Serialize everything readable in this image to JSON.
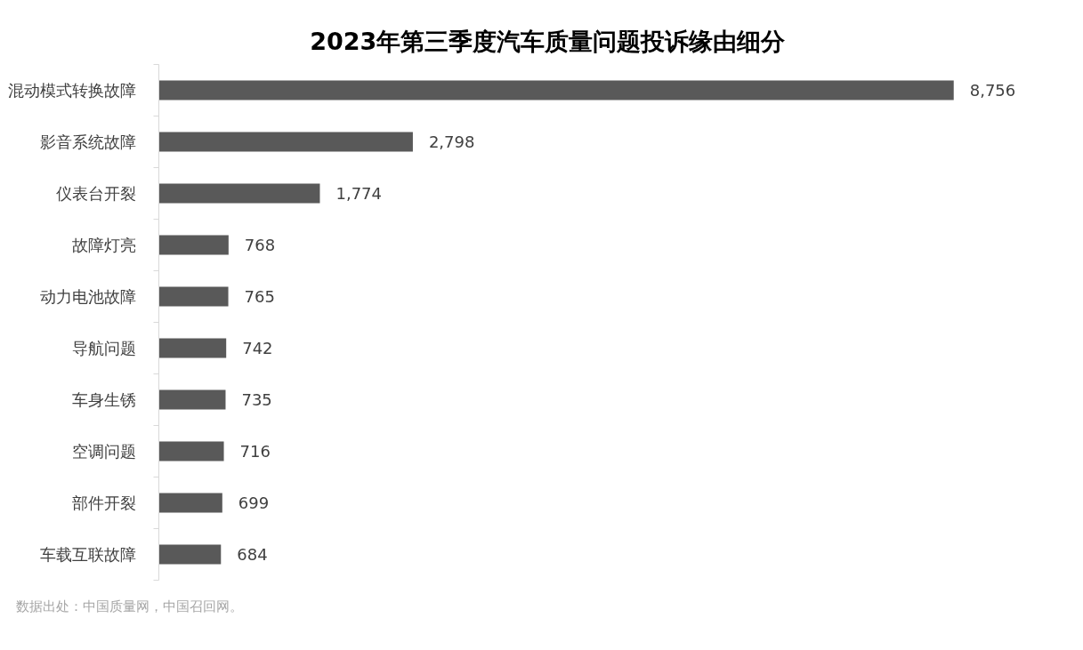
{
  "chart_data": {
    "type": "bar",
    "orientation": "horizontal",
    "title": "2023年第三季度汽车质量问题投诉缘由细分",
    "categories": [
      "混动模式转换故障",
      "影音系统故障",
      "仪表台开裂",
      "故障灯亮",
      "动力电池故障",
      "导航问题",
      "车身生锈",
      "空调问题",
      "部件开裂",
      "车载互联故障"
    ],
    "values": [
      8756,
      2798,
      1774,
      768,
      765,
      742,
      735,
      716,
      699,
      684
    ],
    "value_labels": [
      "8,756",
      "2,798",
      "1,774",
      "768",
      "765",
      "742",
      "735",
      "716",
      "699",
      "684"
    ],
    "color": "#595959",
    "grid": false,
    "tick_labels": "y",
    "annotations": [
      "数据出处：中国质量网，中国召回网。"
    ]
  }
}
